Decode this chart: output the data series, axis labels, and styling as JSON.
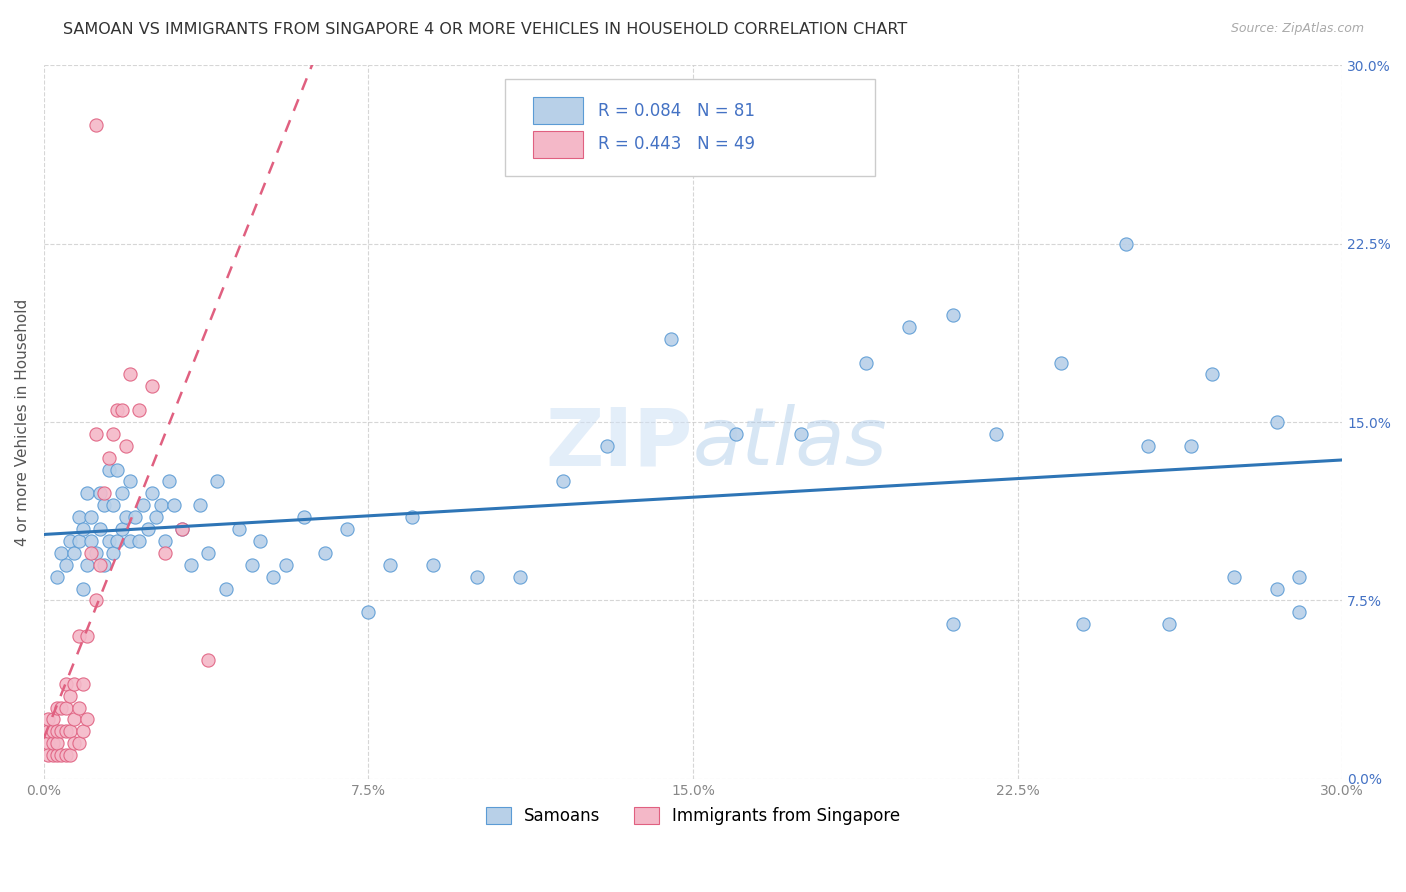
{
  "title": "SAMOAN VS IMMIGRANTS FROM SINGAPORE 4 OR MORE VEHICLES IN HOUSEHOLD CORRELATION CHART",
  "source": "Source: ZipAtlas.com",
  "ylabel_label": "4 or more Vehicles in Household",
  "legend_label_1": "Samoans",
  "legend_label_2": "Immigrants from Singapore",
  "r1": 0.084,
  "n1": 81,
  "r2": 0.443,
  "n2": 49,
  "color_blue_fill": "#b8d0e8",
  "color_blue_edge": "#5b9bd5",
  "color_pink_fill": "#f4b8c8",
  "color_pink_edge": "#e06080",
  "color_blue_text": "#4472c4",
  "trendline_blue": "#2e75b6",
  "trendline_pink": "#e06080",
  "watermark_color": "#d0e4f4",
  "blue_scatter_x": [
    0.003,
    0.004,
    0.005,
    0.006,
    0.007,
    0.008,
    0.008,
    0.009,
    0.009,
    0.01,
    0.01,
    0.011,
    0.011,
    0.012,
    0.013,
    0.013,
    0.014,
    0.014,
    0.015,
    0.015,
    0.016,
    0.016,
    0.017,
    0.017,
    0.018,
    0.018,
    0.019,
    0.02,
    0.02,
    0.021,
    0.022,
    0.023,
    0.024,
    0.025,
    0.026,
    0.027,
    0.028,
    0.029,
    0.03,
    0.032,
    0.034,
    0.036,
    0.038,
    0.04,
    0.042,
    0.045,
    0.048,
    0.05,
    0.053,
    0.056,
    0.06,
    0.065,
    0.07,
    0.075,
    0.08,
    0.085,
    0.09,
    0.1,
    0.11,
    0.12,
    0.13,
    0.145,
    0.16,
    0.175,
    0.19,
    0.2,
    0.21,
    0.22,
    0.235,
    0.25,
    0.255,
    0.265,
    0.275,
    0.285,
    0.29,
    0.21,
    0.24,
    0.26,
    0.27,
    0.285,
    0.29
  ],
  "blue_scatter_y": [
    0.085,
    0.095,
    0.09,
    0.1,
    0.095,
    0.1,
    0.11,
    0.08,
    0.105,
    0.09,
    0.12,
    0.1,
    0.11,
    0.095,
    0.105,
    0.12,
    0.09,
    0.115,
    0.1,
    0.13,
    0.095,
    0.115,
    0.1,
    0.13,
    0.105,
    0.12,
    0.11,
    0.1,
    0.125,
    0.11,
    0.1,
    0.115,
    0.105,
    0.12,
    0.11,
    0.115,
    0.1,
    0.125,
    0.115,
    0.105,
    0.09,
    0.115,
    0.095,
    0.125,
    0.08,
    0.105,
    0.09,
    0.1,
    0.085,
    0.09,
    0.11,
    0.095,
    0.105,
    0.07,
    0.09,
    0.11,
    0.09,
    0.085,
    0.085,
    0.125,
    0.14,
    0.185,
    0.145,
    0.145,
    0.175,
    0.19,
    0.195,
    0.145,
    0.175,
    0.225,
    0.14,
    0.14,
    0.085,
    0.08,
    0.085,
    0.065,
    0.065,
    0.065,
    0.17,
    0.15,
    0.07
  ],
  "pink_scatter_x": [
    0.001,
    0.001,
    0.001,
    0.001,
    0.002,
    0.002,
    0.002,
    0.002,
    0.003,
    0.003,
    0.003,
    0.003,
    0.004,
    0.004,
    0.004,
    0.005,
    0.005,
    0.005,
    0.005,
    0.006,
    0.006,
    0.006,
    0.007,
    0.007,
    0.007,
    0.008,
    0.008,
    0.008,
    0.009,
    0.009,
    0.01,
    0.01,
    0.011,
    0.012,
    0.012,
    0.013,
    0.014,
    0.015,
    0.016,
    0.017,
    0.018,
    0.019,
    0.02,
    0.022,
    0.025,
    0.028,
    0.032,
    0.038,
    0.012
  ],
  "pink_scatter_y": [
    0.015,
    0.02,
    0.025,
    0.01,
    0.01,
    0.015,
    0.02,
    0.025,
    0.01,
    0.015,
    0.02,
    0.03,
    0.01,
    0.02,
    0.03,
    0.01,
    0.02,
    0.03,
    0.04,
    0.01,
    0.02,
    0.035,
    0.015,
    0.025,
    0.04,
    0.015,
    0.03,
    0.06,
    0.02,
    0.04,
    0.025,
    0.06,
    0.095,
    0.075,
    0.145,
    0.09,
    0.12,
    0.135,
    0.145,
    0.155,
    0.155,
    0.14,
    0.17,
    0.155,
    0.165,
    0.095,
    0.105,
    0.05,
    0.275
  ]
}
